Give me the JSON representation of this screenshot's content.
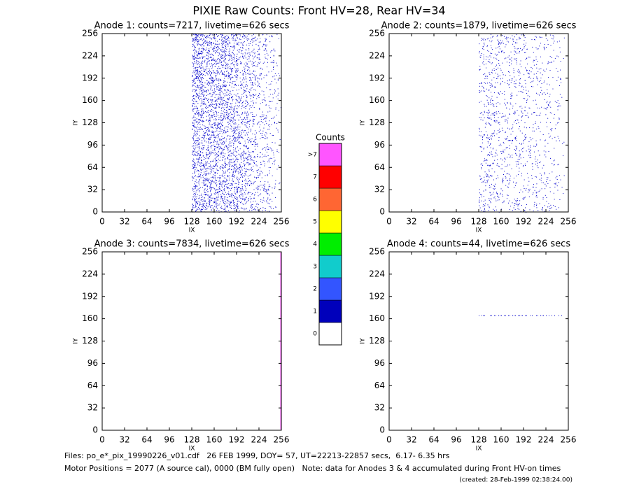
{
  "header": {
    "title": "PIXIE Raw Counts:  Front HV=28, Rear HV=34"
  },
  "chart_data": [
    {
      "type": "image",
      "title": "Anode 1: counts=7217, livetime=626 secs",
      "x_label": "IX",
      "y_label": "IY",
      "xlim": [
        0,
        256
      ],
      "ylim": [
        0,
        256
      ],
      "xticks": [
        0,
        32,
        64,
        96,
        128,
        160,
        192,
        224,
        256
      ],
      "yticks": [
        0,
        32,
        64,
        96,
        128,
        160,
        192,
        224,
        256
      ]
    },
    {
      "type": "image",
      "title": "Anode 2: counts=1879, livetime=626 secs",
      "x_label": "IX",
      "y_label": "IY",
      "xlim": [
        0,
        256
      ],
      "ylim": [
        0,
        256
      ],
      "xticks": [
        0,
        32,
        64,
        96,
        128,
        160,
        192,
        224,
        256
      ],
      "yticks": [
        0,
        32,
        64,
        96,
        128,
        160,
        192,
        224,
        256
      ]
    },
    {
      "type": "image",
      "title": "Anode 3: counts=7834, livetime=626 secs",
      "x_label": "IX",
      "y_label": "IY",
      "xlim": [
        0,
        256
      ],
      "ylim": [
        0,
        256
      ],
      "xticks": [
        0,
        32,
        64,
        96,
        128,
        160,
        192,
        224,
        256
      ],
      "yticks": [
        0,
        32,
        64,
        96,
        128,
        160,
        192,
        224,
        256
      ]
    },
    {
      "type": "image",
      "title": "Anode 4: counts=44, livetime=626 secs",
      "x_label": "IX",
      "y_label": "IY",
      "xlim": [
        0,
        256
      ],
      "ylim": [
        0,
        256
      ],
      "xticks": [
        0,
        32,
        64,
        96,
        128,
        160,
        192,
        224,
        256
      ],
      "yticks": [
        0,
        32,
        64,
        96,
        128,
        160,
        192,
        224,
        256
      ]
    }
  ],
  "colorbar": {
    "title": "Counts",
    "labels": [
      "0",
      "1",
      "2",
      "3",
      "4",
      "5",
      "6",
      "7",
      ">7"
    ],
    "colors": [
      "#ffffff",
      "#0000bb",
      "#3355ff",
      "#11cccc",
      "#00ee00",
      "#ffff00",
      "#ff6633",
      "#ff0000",
      "#ff55ff"
    ]
  },
  "footer": [
    "Files: po_e*_pix_19990226_v01.cdf   26 FEB 1999, DOY= 57, UT=22213-22857 secs,  6.17- 6.35 hrs",
    "Motor Positions = 2077 (A source cal), 0000 (BM fully open)   Note: data for Anodes 3 & 4 accumulated during Front HV-on times",
    "(created: 28-Feb-1999 02:38:24.00)"
  ]
}
